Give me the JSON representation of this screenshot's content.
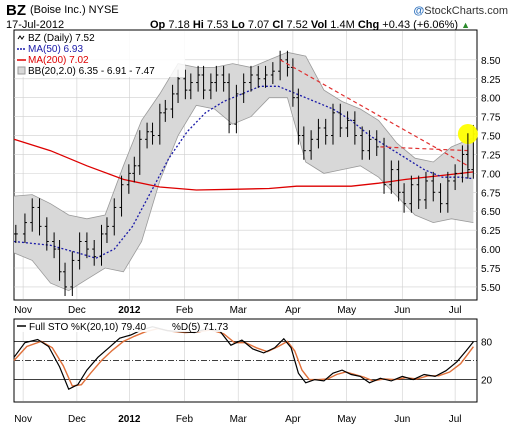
{
  "header": {
    "ticker": "BZ",
    "company": "(Boise Inc.) NYSE",
    "date": "17-Jul-2012",
    "open_label": "Op",
    "open": "7.18",
    "high_label": "Hi",
    "high": "7.53",
    "low_label": "Lo",
    "low": "7.07",
    "close_label": "Cl",
    "close": "7.52",
    "vol_label": "Vol",
    "vol": "1.4M",
    "chg_label": "Chg",
    "chg": "+0.43 (+6.06%)",
    "logo_at": "@",
    "logo_text": "StockCharts.com",
    "up_arrow": "▲"
  },
  "colors": {
    "price": "#000000",
    "ma50": "#1a1aa8",
    "ma200": "#dd0000",
    "band_fill": "#d8d8d8",
    "band_edge": "#9a9a9a",
    "trend": "#e03030",
    "highlight": "#ffff00",
    "stoch_k": "#000000",
    "stoch_d": "#e0703a",
    "chg_up": "#2a8a2a"
  },
  "chart_data": [
    {
      "type": "line",
      "legend": [
        {
          "key": "bz",
          "text": "BZ (Daily) 7.52"
        },
        {
          "key": "ma50",
          "text": "MA(50) 6.93"
        },
        {
          "key": "ma200",
          "text": "MA(200) 7.02"
        },
        {
          "key": "bb",
          "text": "BB(20,2.0) 6.35 - 6.91 - 7.47"
        }
      ],
      "legend_position": "top-left",
      "x_labels": [
        {
          "t": 0.5,
          "text": "Nov",
          "bold": false
        },
        {
          "t": 3.45,
          "text": "Dec",
          "bold": false
        },
        {
          "t": 6.33,
          "text": "2012",
          "bold": true
        },
        {
          "t": 9.35,
          "text": "Feb",
          "bold": false
        },
        {
          "t": 12.3,
          "text": "Mar",
          "bold": false
        },
        {
          "t": 15.3,
          "text": "Apr",
          "bold": false
        },
        {
          "t": 18.25,
          "text": "May",
          "bold": false
        },
        {
          "t": 21.3,
          "text": "Jun",
          "bold": false
        },
        {
          "t": 24.2,
          "text": "Jul",
          "bold": false
        }
      ],
      "y_ticks": [
        5.5,
        5.75,
        6.0,
        6.25,
        6.5,
        6.75,
        7.0,
        7.25,
        7.5,
        7.75,
        8.0,
        8.25,
        8.5
      ],
      "ylim": [
        5.38,
        8.63
      ],
      "grid": true,
      "price": [
        {
          "t": 0.1,
          "v": 6.2
        },
        {
          "t": 0.6,
          "v": 6.35
        },
        {
          "t": 1.0,
          "v": 6.55
        },
        {
          "t": 1.4,
          "v": 6.3
        },
        {
          "t": 1.8,
          "v": 6.1
        },
        {
          "t": 2.2,
          "v": 6.0
        },
        {
          "t": 2.5,
          "v": 5.7
        },
        {
          "t": 2.8,
          "v": 5.5
        },
        {
          "t": 3.2,
          "v": 5.85
        },
        {
          "t": 3.6,
          "v": 6.1
        },
        {
          "t": 4.0,
          "v": 6.0
        },
        {
          "t": 4.4,
          "v": 5.9
        },
        {
          "t": 4.8,
          "v": 6.2
        },
        {
          "t": 5.1,
          "v": 6.3
        },
        {
          "t": 5.5,
          "v": 6.55
        },
        {
          "t": 5.9,
          "v": 6.85
        },
        {
          "t": 6.3,
          "v": 7.0
        },
        {
          "t": 6.6,
          "v": 7.1
        },
        {
          "t": 6.9,
          "v": 7.45
        },
        {
          "t": 7.3,
          "v": 7.55
        },
        {
          "t": 7.6,
          "v": 7.5
        },
        {
          "t": 8.0,
          "v": 7.8
        },
        {
          "t": 8.3,
          "v": 7.85
        },
        {
          "t": 8.7,
          "v": 8.05
        },
        {
          "t": 9.0,
          "v": 8.25
        },
        {
          "t": 9.4,
          "v": 8.1
        },
        {
          "t": 9.7,
          "v": 8.2
        },
        {
          "t": 10.1,
          "v": 8.3
        },
        {
          "t": 10.4,
          "v": 8.1
        },
        {
          "t": 10.8,
          "v": 8.2
        },
        {
          "t": 11.1,
          "v": 8.3
        },
        {
          "t": 11.5,
          "v": 8.2
        },
        {
          "t": 11.8,
          "v": 7.65
        },
        {
          "t": 12.2,
          "v": 8.05
        },
        {
          "t": 12.6,
          "v": 8.2
        },
        {
          "t": 13.0,
          "v": 8.3
        },
        {
          "t": 13.4,
          "v": 8.25
        },
        {
          "t": 13.8,
          "v": 8.3
        },
        {
          "t": 14.2,
          "v": 8.35
        },
        {
          "t": 14.6,
          "v": 8.5
        },
        {
          "t": 15.0,
          "v": 8.4
        },
        {
          "t": 15.3,
          "v": 8.0
        },
        {
          "t": 15.6,
          "v": 7.5
        },
        {
          "t": 15.9,
          "v": 7.3
        },
        {
          "t": 16.3,
          "v": 7.45
        },
        {
          "t": 16.7,
          "v": 7.6
        },
        {
          "t": 17.1,
          "v": 7.5
        },
        {
          "t": 17.5,
          "v": 7.8
        },
        {
          "t": 17.9,
          "v": 7.6
        },
        {
          "t": 18.3,
          "v": 7.7
        },
        {
          "t": 18.7,
          "v": 7.5
        },
        {
          "t": 19.1,
          "v": 7.3
        },
        {
          "t": 19.5,
          "v": 7.45
        },
        {
          "t": 19.9,
          "v": 7.35
        },
        {
          "t": 20.3,
          "v": 6.85
        },
        {
          "t": 20.7,
          "v": 7.05
        },
        {
          "t": 21.1,
          "v": 6.75
        },
        {
          "t": 21.4,
          "v": 6.6
        },
        {
          "t": 21.8,
          "v": 6.85
        },
        {
          "t": 22.2,
          "v": 6.65
        },
        {
          "t": 22.6,
          "v": 6.9
        },
        {
          "t": 23.0,
          "v": 6.75
        },
        {
          "t": 23.4,
          "v": 6.6
        },
        {
          "t": 23.8,
          "v": 6.9
        },
        {
          "t": 24.2,
          "v": 7.0
        },
        {
          "t": 24.6,
          "v": 7.25
        },
        {
          "t": 24.9,
          "v": 7.05
        },
        {
          "t": 25.2,
          "v": 7.52
        }
      ],
      "ma50": [
        {
          "t": 0,
          "v": 6.1
        },
        {
          "t": 2,
          "v": 6.05
        },
        {
          "t": 3.5,
          "v": 5.95
        },
        {
          "t": 4.5,
          "v": 5.88
        },
        {
          "t": 5.5,
          "v": 6.0
        },
        {
          "t": 6.5,
          "v": 6.3
        },
        {
          "t": 7.5,
          "v": 6.75
        },
        {
          "t": 8.5,
          "v": 7.2
        },
        {
          "t": 9.5,
          "v": 7.55
        },
        {
          "t": 10.5,
          "v": 7.8
        },
        {
          "t": 11.5,
          "v": 7.95
        },
        {
          "t": 12.5,
          "v": 8.05
        },
        {
          "t": 13.5,
          "v": 8.15
        },
        {
          "t": 14.5,
          "v": 8.15
        },
        {
          "t": 15.5,
          "v": 8.05
        },
        {
          "t": 16.5,
          "v": 7.95
        },
        {
          "t": 17.5,
          "v": 7.85
        },
        {
          "t": 18.5,
          "v": 7.7
        },
        {
          "t": 19.5,
          "v": 7.5
        },
        {
          "t": 20.5,
          "v": 7.35
        },
        {
          "t": 21.5,
          "v": 7.2
        },
        {
          "t": 22.5,
          "v": 7.05
        },
        {
          "t": 23.5,
          "v": 6.95
        },
        {
          "t": 24.5,
          "v": 6.95
        },
        {
          "t": 25.2,
          "v": 6.93
        }
      ],
      "ma200": [
        {
          "t": 0,
          "v": 7.45
        },
        {
          "t": 2,
          "v": 7.3
        },
        {
          "t": 4,
          "v": 7.1
        },
        {
          "t": 6,
          "v": 6.92
        },
        {
          "t": 8,
          "v": 6.82
        },
        {
          "t": 10,
          "v": 6.78
        },
        {
          "t": 12,
          "v": 6.79
        },
        {
          "t": 14,
          "v": 6.8
        },
        {
          "t": 15.5,
          "v": 6.83
        },
        {
          "t": 17,
          "v": 6.83
        },
        {
          "t": 18.5,
          "v": 6.83
        },
        {
          "t": 20,
          "v": 6.87
        },
        {
          "t": 21.5,
          "v": 6.92
        },
        {
          "t": 23,
          "v": 6.96
        },
        {
          "t": 24.5,
          "v": 7.0
        },
        {
          "t": 25.2,
          "v": 7.02
        }
      ],
      "bb_upper": [
        {
          "t": 0,
          "v": 6.7
        },
        {
          "t": 1,
          "v": 6.72
        },
        {
          "t": 2,
          "v": 6.6
        },
        {
          "t": 3,
          "v": 6.45
        },
        {
          "t": 4,
          "v": 6.4
        },
        {
          "t": 5,
          "v": 6.45
        },
        {
          "t": 6,
          "v": 7.1
        },
        {
          "t": 7,
          "v": 7.7
        },
        {
          "t": 8,
          "v": 8.05
        },
        {
          "t": 9,
          "v": 8.45
        },
        {
          "t": 10,
          "v": 8.4
        },
        {
          "t": 11,
          "v": 8.4
        },
        {
          "t": 12,
          "v": 8.45
        },
        {
          "t": 13,
          "v": 8.4
        },
        {
          "t": 14,
          "v": 8.5
        },
        {
          "t": 15,
          "v": 8.6
        },
        {
          "t": 16,
          "v": 8.55
        },
        {
          "t": 17,
          "v": 8.1
        },
        {
          "t": 18,
          "v": 7.95
        },
        {
          "t": 19,
          "v": 7.85
        },
        {
          "t": 20,
          "v": 7.7
        },
        {
          "t": 21,
          "v": 7.4
        },
        {
          "t": 22,
          "v": 7.2
        },
        {
          "t": 23,
          "v": 7.15
        },
        {
          "t": 24,
          "v": 7.35
        },
        {
          "t": 25.2,
          "v": 7.47
        }
      ],
      "bb_lower": [
        {
          "t": 0,
          "v": 5.95
        },
        {
          "t": 1,
          "v": 5.85
        },
        {
          "t": 2,
          "v": 5.55
        },
        {
          "t": 3,
          "v": 5.45
        },
        {
          "t": 4,
          "v": 5.6
        },
        {
          "t": 5,
          "v": 5.75
        },
        {
          "t": 6,
          "v": 5.7
        },
        {
          "t": 7,
          "v": 6.1
        },
        {
          "t": 8,
          "v": 6.9
        },
        {
          "t": 9,
          "v": 7.5
        },
        {
          "t": 10,
          "v": 7.9
        },
        {
          "t": 11,
          "v": 7.85
        },
        {
          "t": 12,
          "v": 7.65
        },
        {
          "t": 13,
          "v": 7.75
        },
        {
          "t": 14,
          "v": 8.0
        },
        {
          "t": 15,
          "v": 8.0
        },
        {
          "t": 16,
          "v": 7.15
        },
        {
          "t": 17,
          "v": 7.0
        },
        {
          "t": 18,
          "v": 7.05
        },
        {
          "t": 19,
          "v": 7.1
        },
        {
          "t": 20,
          "v": 6.95
        },
        {
          "t": 21,
          "v": 6.7
        },
        {
          "t": 22,
          "v": 6.45
        },
        {
          "t": 23,
          "v": 6.35
        },
        {
          "t": 24,
          "v": 6.4
        },
        {
          "t": 25.2,
          "v": 6.35
        }
      ],
      "annotations": {
        "trend_line": [
          {
            "t": 14.6,
            "v": 8.5
          },
          {
            "t": 24.9,
            "v": 7.1
          }
        ],
        "resistance_line": [
          {
            "t": 20.1,
            "v": 7.35
          },
          {
            "t": 25.0,
            "v": 7.3
          }
        ],
        "highlight_point": {
          "t": 24.9,
          "v": 7.52
        }
      }
    },
    {
      "type": "line",
      "legend": [
        {
          "key": "k",
          "text": "Full STO %K(20,10) 79.40"
        },
        {
          "key": "d",
          "text": "%D(5) 71.73"
        }
      ],
      "legend_position": "top-left",
      "y_ticks": [
        20,
        80
      ],
      "ylim": [
        -12,
        112
      ],
      "ref_lines": [
        20,
        50,
        80
      ],
      "k": [
        {
          "t": 0,
          "v": 55
        },
        {
          "t": 0.6,
          "v": 78
        },
        {
          "t": 1.3,
          "v": 83
        },
        {
          "t": 1.9,
          "v": 72
        },
        {
          "t": 2.5,
          "v": 40
        },
        {
          "t": 3.0,
          "v": 5
        },
        {
          "t": 3.5,
          "v": 12
        },
        {
          "t": 4.0,
          "v": 35
        },
        {
          "t": 4.6,
          "v": 55
        },
        {
          "t": 5.2,
          "v": 70
        },
        {
          "t": 5.8,
          "v": 85
        },
        {
          "t": 6.4,
          "v": 90
        },
        {
          "t": 7.0,
          "v": 98
        },
        {
          "t": 7.6,
          "v": 103
        },
        {
          "t": 8.4,
          "v": 97
        },
        {
          "t": 9.2,
          "v": 95
        },
        {
          "t": 9.9,
          "v": 94
        },
        {
          "t": 10.6,
          "v": 100
        },
        {
          "t": 11.3,
          "v": 96
        },
        {
          "t": 11.9,
          "v": 74
        },
        {
          "t": 12.5,
          "v": 82
        },
        {
          "t": 13.1,
          "v": 68
        },
        {
          "t": 13.7,
          "v": 62
        },
        {
          "t": 14.3,
          "v": 70
        },
        {
          "t": 14.8,
          "v": 84
        },
        {
          "t": 15.2,
          "v": 70
        },
        {
          "t": 15.6,
          "v": 30
        },
        {
          "t": 16.0,
          "v": 15
        },
        {
          "t": 16.5,
          "v": 20
        },
        {
          "t": 17.0,
          "v": 18
        },
        {
          "t": 17.5,
          "v": 30
        },
        {
          "t": 18.0,
          "v": 35
        },
        {
          "t": 18.5,
          "v": 28
        },
        {
          "t": 19.0,
          "v": 25
        },
        {
          "t": 19.5,
          "v": 15
        },
        {
          "t": 20.1,
          "v": 22
        },
        {
          "t": 20.7,
          "v": 18
        },
        {
          "t": 21.3,
          "v": 25
        },
        {
          "t": 21.9,
          "v": 20
        },
        {
          "t": 22.5,
          "v": 28
        },
        {
          "t": 23.1,
          "v": 25
        },
        {
          "t": 23.7,
          "v": 34
        },
        {
          "t": 24.3,
          "v": 48
        },
        {
          "t": 24.8,
          "v": 65
        },
        {
          "t": 25.2,
          "v": 79.4
        }
      ],
      "d": [
        {
          "t": 0,
          "v": 50
        },
        {
          "t": 0.7,
          "v": 72
        },
        {
          "t": 1.5,
          "v": 80
        },
        {
          "t": 2.1,
          "v": 70
        },
        {
          "t": 2.7,
          "v": 42
        },
        {
          "t": 3.2,
          "v": 10
        },
        {
          "t": 3.7,
          "v": 12
        },
        {
          "t": 4.2,
          "v": 30
        },
        {
          "t": 4.8,
          "v": 50
        },
        {
          "t": 5.4,
          "v": 66
        },
        {
          "t": 6.0,
          "v": 80
        },
        {
          "t": 6.6,
          "v": 88
        },
        {
          "t": 7.2,
          "v": 95
        },
        {
          "t": 7.9,
          "v": 100
        },
        {
          "t": 8.6,
          "v": 96
        },
        {
          "t": 9.4,
          "v": 94
        },
        {
          "t": 10.1,
          "v": 95
        },
        {
          "t": 10.8,
          "v": 98
        },
        {
          "t": 11.5,
          "v": 92
        },
        {
          "t": 12.1,
          "v": 78
        },
        {
          "t": 12.7,
          "v": 78
        },
        {
          "t": 13.3,
          "v": 70
        },
        {
          "t": 13.9,
          "v": 64
        },
        {
          "t": 14.5,
          "v": 72
        },
        {
          "t": 15.0,
          "v": 80
        },
        {
          "t": 15.4,
          "v": 65
        },
        {
          "t": 15.8,
          "v": 35
        },
        {
          "t": 16.2,
          "v": 20
        },
        {
          "t": 16.7,
          "v": 20
        },
        {
          "t": 17.2,
          "v": 21
        },
        {
          "t": 17.7,
          "v": 28
        },
        {
          "t": 18.2,
          "v": 32
        },
        {
          "t": 18.7,
          "v": 28
        },
        {
          "t": 19.2,
          "v": 24
        },
        {
          "t": 19.7,
          "v": 18
        },
        {
          "t": 20.3,
          "v": 21
        },
        {
          "t": 20.9,
          "v": 20
        },
        {
          "t": 21.5,
          "v": 23
        },
        {
          "t": 22.1,
          "v": 21
        },
        {
          "t": 22.7,
          "v": 26
        },
        {
          "t": 23.3,
          "v": 26
        },
        {
          "t": 23.9,
          "v": 32
        },
        {
          "t": 24.5,
          "v": 45
        },
        {
          "t": 24.9,
          "v": 60
        },
        {
          "t": 25.2,
          "v": 71.73
        }
      ]
    }
  ]
}
